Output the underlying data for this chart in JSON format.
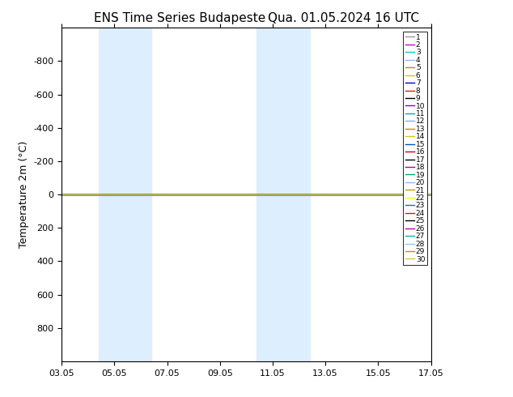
{
  "title_left": "ENS Time Series Budapeste",
  "title_right": "Qua. 01.05.2024 16 UTC",
  "ylabel": "Temperature 2m (°C)",
  "xtick_labels": [
    "03.05",
    "05.05",
    "07.05",
    "09.05",
    "11.05",
    "13.05",
    "15.05",
    "17.05"
  ],
  "xtick_positions": [
    0,
    2,
    4,
    6,
    8,
    10,
    12,
    14
  ],
  "ylim_top": -1000,
  "ylim_bottom": 1000,
  "ytick_positions": [
    -800,
    -600,
    -400,
    -200,
    0,
    200,
    400,
    600,
    800
  ],
  "ytick_labels": [
    "-800",
    "-600",
    "-400",
    "-200",
    "0",
    "200",
    "400",
    "600",
    "800"
  ],
  "shaded_bands": [
    {
      "x_start": 1.4,
      "x_end": 2.0
    },
    {
      "x_start": 2.0,
      "x_end": 3.4
    },
    {
      "x_start": 7.4,
      "x_end": 8.0
    },
    {
      "x_start": 8.0,
      "x_end": 9.4
    }
  ],
  "flat_line_y": 0,
  "flat_line_color": "#ffff00",
  "member_colors": [
    "#999999",
    "#cc00cc",
    "#00cccc",
    "#88bbff",
    "#cc8800",
    "#cccc00",
    "#0000cc",
    "#cc2200",
    "#000000",
    "#8800cc",
    "#00aaaa",
    "#88aaff",
    "#cc8800",
    "#cccc00",
    "#0055cc",
    "#cc0000",
    "#000000",
    "#aa00aa",
    "#00aa88",
    "#88bbff",
    "#cc9900",
    "#ffff00",
    "#0077cc",
    "#cc2200",
    "#000000",
    "#bb00bb",
    "#00bbaa",
    "#88ccff",
    "#cc8800",
    "#cccc44"
  ],
  "num_members": 30,
  "x_data_start": 0,
  "x_data_end": 14,
  "background_color": "#ffffff",
  "plot_bg_color": "#ffffff",
  "shaded_color": "#ddeeff",
  "title_fontsize": 11,
  "axis_label_fontsize": 9,
  "tick_fontsize": 8,
  "legend_fontsize": 6.5
}
